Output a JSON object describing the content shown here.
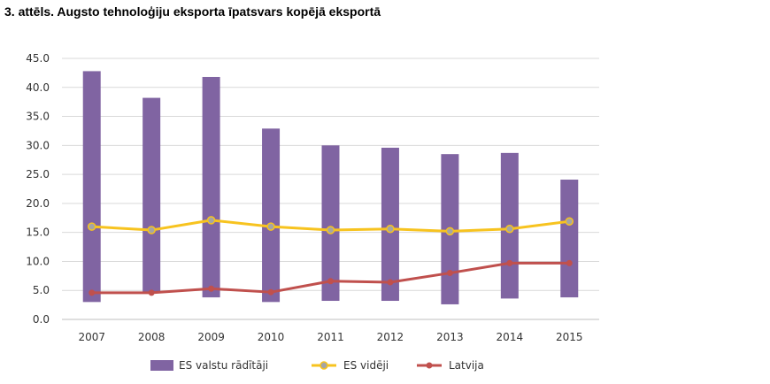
{
  "figure": {
    "title": "3. attēls. Augsto tehnoloģiju eksporta īpatsvars kopējā eksportā"
  },
  "chart_data": {
    "type": "bar",
    "title": "3. attēls. Augsto tehnoloģiju eksporta īpatsvars kopējā eksportā",
    "xlabel": "",
    "ylabel": "",
    "categories": [
      "2007",
      "2008",
      "2009",
      "2010",
      "2011",
      "2012",
      "2013",
      "2014",
      "2015"
    ],
    "ylim": [
      0,
      45
    ],
    "yticks": [
      "0.0",
      "5.0",
      "10.0",
      "15.0",
      "20.0",
      "25.0",
      "30.0",
      "35.0",
      "40.0",
      "45.0"
    ],
    "grid": true,
    "legend_position": "bottom",
    "range_series": {
      "name": "ES valstu rādītāji",
      "type": "floating-bar",
      "low": [
        3.0,
        4.6,
        3.8,
        3.0,
        3.2,
        3.2,
        2.6,
        3.6,
        3.8
      ],
      "high": [
        42.8,
        38.2,
        41.8,
        32.9,
        30.0,
        29.6,
        28.5,
        28.7,
        24.1
      ],
      "color": "#8064a2"
    },
    "series": [
      {
        "name": "ES vidēji",
        "type": "line",
        "values": [
          16.0,
          15.4,
          17.1,
          16.0,
          15.4,
          15.6,
          15.2,
          15.6,
          16.9
        ],
        "color": "#f7c31f"
      },
      {
        "name": "Latvija",
        "type": "line",
        "values": [
          4.6,
          4.6,
          5.3,
          4.7,
          6.6,
          6.4,
          8.0,
          9.7,
          9.7
        ],
        "color": "#c0504d"
      }
    ]
  }
}
